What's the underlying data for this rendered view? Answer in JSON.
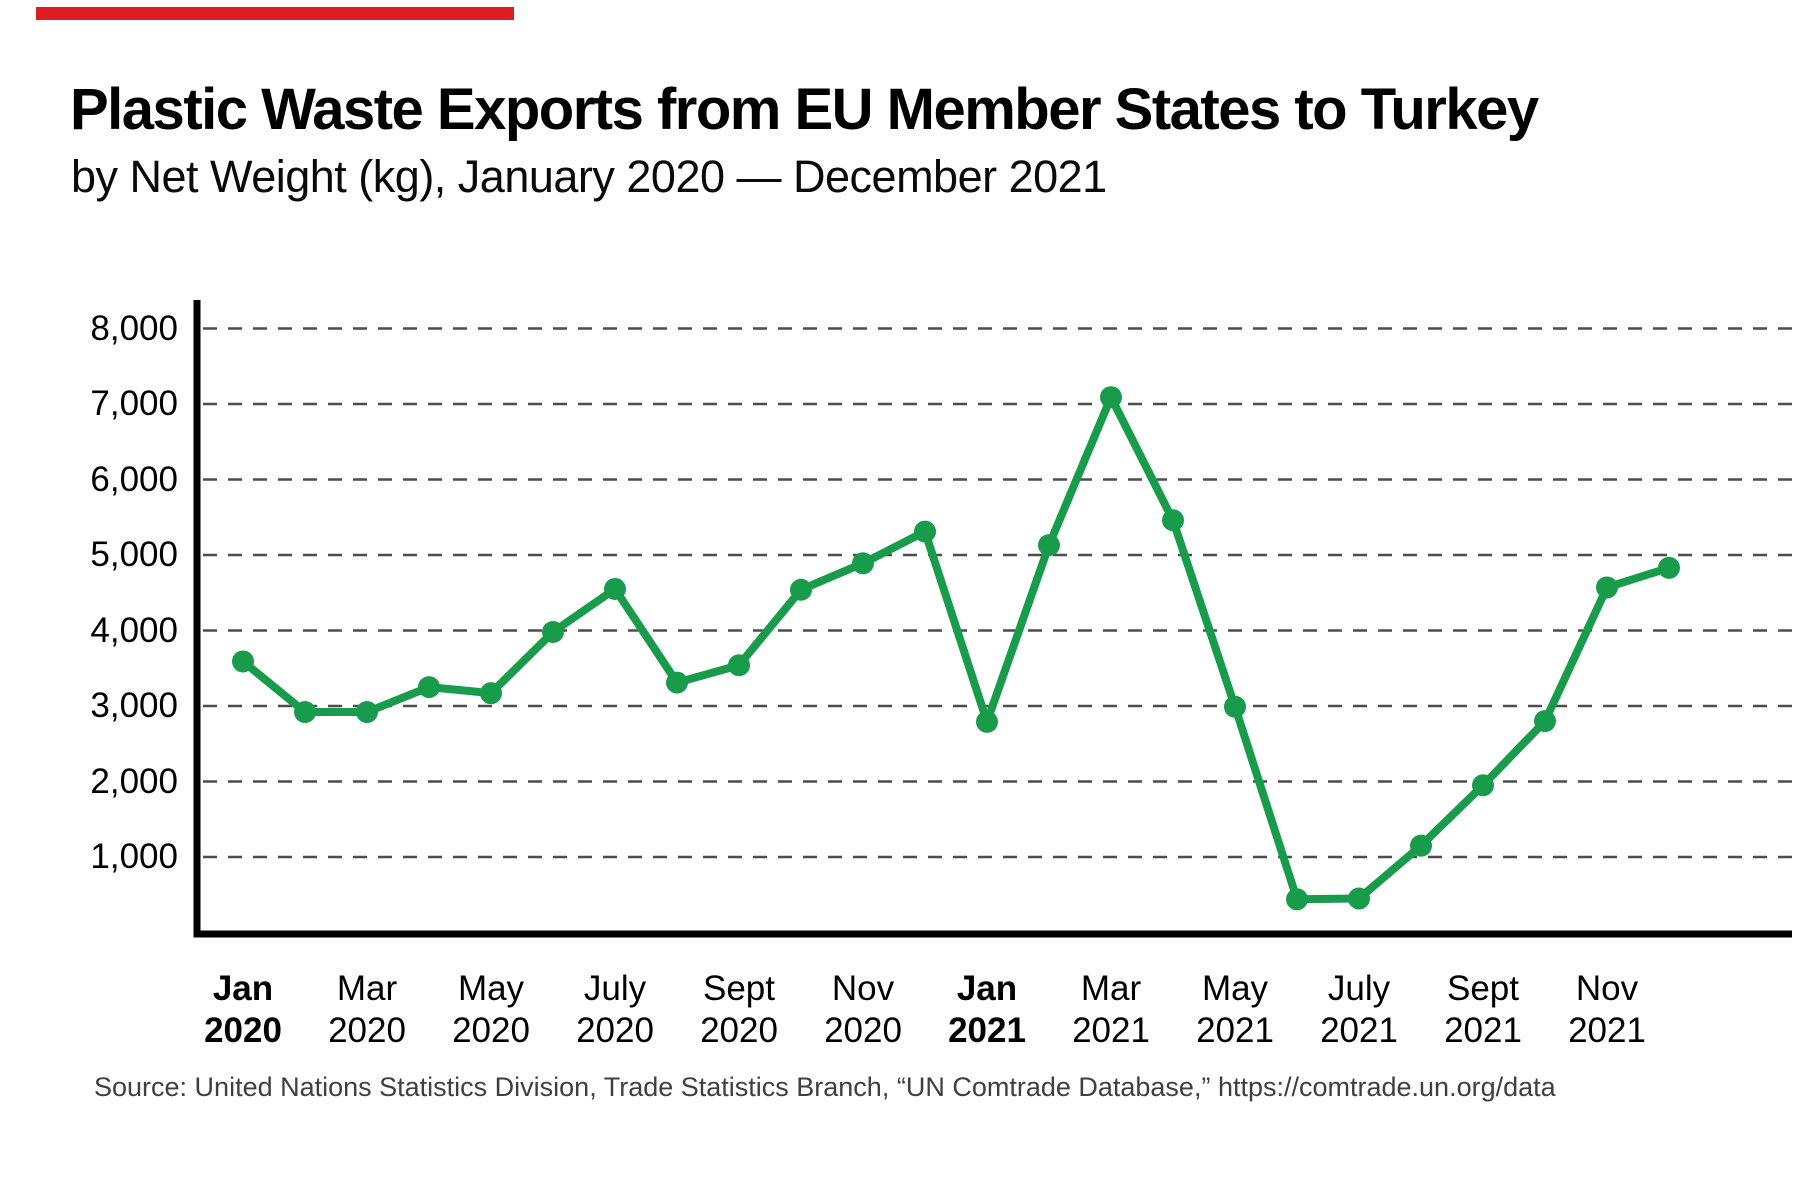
{
  "brand": {
    "bar_color": "#e01b22"
  },
  "header": {
    "title": "Plastic Waste Exports from EU Member States to Turkey",
    "subtitle": "by Net Weight (kg), January 2020 — December 2021"
  },
  "source": {
    "text": "Source: United Nations Statistics Division, Trade Statistics Branch, “UN Comtrade Database,” https://comtrade.un.org/data"
  },
  "chart_data": {
    "type": "line",
    "title": "Plastic Waste Exports from EU Member States to Turkey",
    "subtitle": "by Net Weight (kg), January 2020 — December 2021",
    "series_name": "Plastic waste exports (net weight, kg)",
    "series_color": "#189c4b",
    "grid": "dashed horizontal",
    "grid_color": "#4d4d4d",
    "axis_color": "#000000",
    "legend": "none",
    "ylim": [
      0,
      8400
    ],
    "y_ticks": [
      8000,
      7000,
      6000,
      5000,
      4000,
      3000,
      2000,
      1000
    ],
    "x": [
      "Jan 2020",
      "Feb 2020",
      "Mar 2020",
      "Apr 2020",
      "May 2020",
      "Jun 2020",
      "Jul 2020",
      "Aug 2020",
      "Sep 2020",
      "Oct 2020",
      "Nov 2020",
      "Dec 2020",
      "Jan 2021",
      "Feb 2021",
      "Mar 2021",
      "Apr 2021",
      "May 2021",
      "Jun 2021",
      "Jul 2021",
      "Aug 2021",
      "Sep 2021",
      "Oct 2021",
      "Nov 2021",
      "Dec 2021"
    ],
    "values": [
      3590,
      2920,
      2920,
      3250,
      3170,
      3980,
      4550,
      3310,
      3540,
      4540,
      4890,
      5310,
      2790,
      5130,
      7090,
      5460,
      2990,
      440,
      450,
      1150,
      1950,
      2800,
      4570,
      4830
    ],
    "x_tick_labels": [
      {
        "month": "Jan",
        "year": "2020",
        "bold": true
      },
      {
        "month": "Mar",
        "year": "2020",
        "bold": false
      },
      {
        "month": "May",
        "year": "2020",
        "bold": false
      },
      {
        "month": "July",
        "year": "2020",
        "bold": false
      },
      {
        "month": "Sept",
        "year": "2020",
        "bold": false
      },
      {
        "month": "Nov",
        "year": "2020",
        "bold": false
      },
      {
        "month": "Jan",
        "year": "2021",
        "bold": true
      },
      {
        "month": "Mar",
        "year": "2021",
        "bold": false
      },
      {
        "month": "May",
        "year": "2021",
        "bold": false
      },
      {
        "month": "July",
        "year": "2021",
        "bold": false
      },
      {
        "month": "Sept",
        "year": "2021",
        "bold": false
      },
      {
        "month": "Nov",
        "year": "2021",
        "bold": false
      }
    ]
  }
}
